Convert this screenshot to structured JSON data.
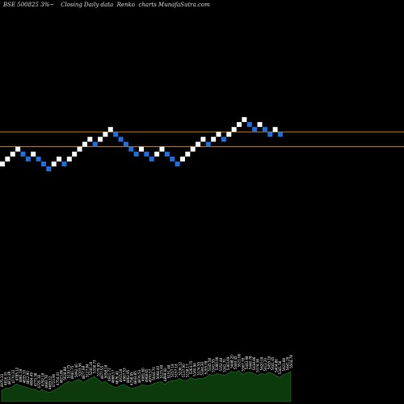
{
  "header": {
    "symbol": "BSE 500825 3%~",
    "description": "Closing Daily data",
    "chart_kind": "Renko",
    "site": "charts MunafaSutra.com"
  },
  "colors": {
    "background": "#000000",
    "up_brick": "#ffffff",
    "down_brick": "#1e6fe0",
    "level_line": "#c07a10",
    "volume_fill": "#0c3a0c",
    "volume_line": "#2a7a2a"
  },
  "chart_data": {
    "type": "renko",
    "x_axis_visible": false,
    "y_axis_visible": false,
    "grid": false,
    "legend": "none",
    "brick_steps": [
      1,
      1,
      1,
      1,
      -1,
      -1,
      1,
      -1,
      -1,
      -1,
      1,
      1,
      -1,
      1,
      1,
      1,
      1,
      1,
      -1,
      1,
      1,
      1,
      -1,
      -1,
      -1,
      -1,
      -1,
      1,
      -1,
      -1,
      1,
      1,
      -1,
      -1,
      -1,
      1,
      1,
      1,
      1,
      1,
      -1,
      1,
      1,
      -1,
      1,
      1,
      1,
      1,
      -1,
      -1,
      1,
      -1,
      -1,
      1,
      -1
    ],
    "start_level": 0,
    "levels": [
      7.5,
      4.5
    ],
    "volume_labels": [
      "4975.33",
      "4816.33",
      "4812.49",
      "4770.33",
      "4785.12",
      "4881.18",
      "4835.10",
      "4812.90",
      "4804.49",
      "4773.38",
      "4725.18",
      "4792.18",
      "4683.78",
      "4683.12",
      "4723.90",
      "4754.41",
      "4823.86",
      "5028.88",
      "5130.75",
      "4940.75",
      "5092.40",
      "5103.56",
      "4877.98",
      "5127.84",
      "5240.18",
      "5338.73",
      "5179.95",
      "4977.55",
      "5058.18",
      "4911.71",
      "4888.17",
      "4876.40",
      "4915.18",
      "4967.53",
      "4862.95",
      "4758.95",
      "4843.85",
      "4876.53",
      "4981.60",
      "4968.65",
      "4970.57",
      "5044.70",
      "5068.40",
      "5125.49",
      "4899.40",
      "5151.48",
      "5157.18",
      "5157.18",
      "5236.12",
      "5137.90",
      "5138.17",
      "5264.75",
      "5160.96",
      "5174.55",
      "5184.30",
      "5205.78",
      "5345.58",
      "5341.55",
      "5360.96",
      "5352.48",
      "5341.70",
      "5363.69",
      "5448.20",
      "5440.45",
      "5521.06",
      "5367.78",
      "5443.98",
      "5440.78",
      "5438.86",
      "5374.38",
      "5420.04",
      "5413.20",
      "5455.16",
      "5441.45",
      "5404.86",
      "5341.56",
      "5421.86",
      "5441.26",
      "5504.78"
    ],
    "volume_values": [
      22,
      26,
      27,
      30,
      35,
      32,
      30,
      28,
      25,
      24,
      20,
      24,
      20,
      18,
      22,
      26,
      30,
      36,
      40,
      38,
      42,
      44,
      38,
      42,
      46,
      50,
      44,
      38,
      40,
      34,
      30,
      28,
      32,
      34,
      30,
      26,
      28,
      30,
      34,
      32,
      32,
      36,
      38,
      40,
      34,
      40,
      42,
      42,
      46,
      42,
      42,
      48,
      44,
      46,
      46,
      48,
      54,
      52,
      56,
      54,
      52,
      56,
      60,
      58,
      62,
      54,
      58,
      58,
      56,
      52,
      56,
      54,
      58,
      56,
      52,
      48,
      54,
      56,
      60
    ]
  }
}
